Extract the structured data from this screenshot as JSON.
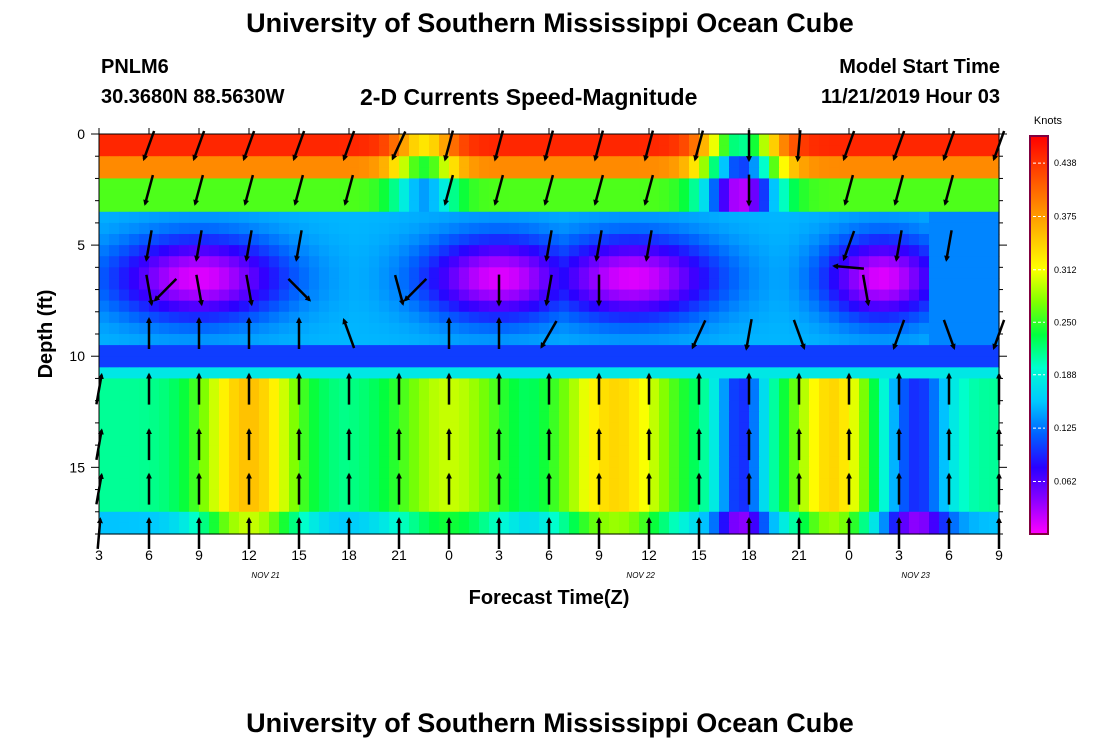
{
  "header": {
    "title": "University of Southern Mississippi Ocean Cube",
    "station_id": "PNLM6",
    "station_coords": "30.3680N 88.5630W",
    "chart_title": "2-D Currents Speed-Magnitude",
    "start_label": "Model Start Time",
    "start_value": "11/21/2019 Hour 03"
  },
  "footer": {
    "title": "University of Southern Mississippi Ocean Cube"
  },
  "colors": {
    "ramp": [
      "#ff00ff",
      "#8f00ff",
      "#2a00ff",
      "#0060ff",
      "#00c8ff",
      "#00ffd0",
      "#00ff40",
      "#80ff00",
      "#ffff00",
      "#ffc000",
      "#ff8000",
      "#ff4000",
      "#ff0000"
    ]
  },
  "chart_data": {
    "type": "heatmap",
    "title": "2-D Currents Speed-Magnitude",
    "xlabel": "Forecast Time(Z)",
    "ylabel": "Depth (ft)",
    "x_range_hours": [
      0,
      54
    ],
    "y_range_ft": [
      0,
      18
    ],
    "x_ticks": [
      {
        "h": 0,
        "label": "3"
      },
      {
        "h": 3,
        "label": "6"
      },
      {
        "h": 6,
        "label": "9"
      },
      {
        "h": 9,
        "label": "12"
      },
      {
        "h": 12,
        "label": "15"
      },
      {
        "h": 15,
        "label": "18"
      },
      {
        "h": 18,
        "label": "21"
      },
      {
        "h": 21,
        "label": "0"
      },
      {
        "h": 24,
        "label": "3"
      },
      {
        "h": 27,
        "label": "6"
      },
      {
        "h": 30,
        "label": "9"
      },
      {
        "h": 33,
        "label": "12"
      },
      {
        "h": 36,
        "label": "15"
      },
      {
        "h": 39,
        "label": "18"
      },
      {
        "h": 42,
        "label": "21"
      },
      {
        "h": 45,
        "label": "0"
      },
      {
        "h": 48,
        "label": "3"
      },
      {
        "h": 51,
        "label": "6"
      },
      {
        "h": 54,
        "label": "9"
      }
    ],
    "y_ticks": [
      {
        "v": 0,
        "label": "0"
      },
      {
        "v": 5,
        "label": "5"
      },
      {
        "v": 10,
        "label": "10"
      },
      {
        "v": 15,
        "label": "15"
      }
    ],
    "date_labels": [
      {
        "h": 10,
        "label": "NOV 21"
      },
      {
        "h": 32.5,
        "label": "NOV 22"
      },
      {
        "h": 49,
        "label": "NOV 23"
      }
    ],
    "colorbar": {
      "unit": "Knots",
      "min": 0,
      "max": 0.47,
      "ticks": [
        "0.438",
        "0.375",
        "0.312",
        "0.250",
        "0.188",
        "0.125",
        "0.062"
      ],
      "tick_values": [
        0.438,
        0.375,
        0.312,
        0.25,
        0.188,
        0.125,
        0.062
      ]
    },
    "vectors": [
      {
        "h": 3,
        "d": 0.5,
        "angle": 200
      },
      {
        "h": 6,
        "d": 0.5,
        "angle": 200
      },
      {
        "h": 9,
        "d": 0.5,
        "angle": 200
      },
      {
        "h": 12,
        "d": 0.5,
        "angle": 200
      },
      {
        "h": 15,
        "d": 0.5,
        "angle": 200
      },
      {
        "h": 18,
        "d": 0.5,
        "angle": 205
      },
      {
        "h": 21,
        "d": 0.5,
        "angle": 195
      },
      {
        "h": 24,
        "d": 0.5,
        "angle": 195
      },
      {
        "h": 27,
        "d": 0.5,
        "angle": 195
      },
      {
        "h": 30,
        "d": 0.5,
        "angle": 195
      },
      {
        "h": 33,
        "d": 0.5,
        "angle": 195
      },
      {
        "h": 36,
        "d": 0.5,
        "angle": 195
      },
      {
        "h": 39,
        "d": 0.5,
        "angle": 180
      },
      {
        "h": 42,
        "d": 0.5,
        "angle": 185
      },
      {
        "h": 45,
        "d": 0.5,
        "angle": 200
      },
      {
        "h": 48,
        "d": 0.5,
        "angle": 200
      },
      {
        "h": 51,
        "d": 0.5,
        "angle": 200
      },
      {
        "h": 54,
        "d": 0.5,
        "angle": 200
      },
      {
        "h": 3,
        "d": 2.5,
        "angle": 195
      },
      {
        "h": 6,
        "d": 2.5,
        "angle": 195
      },
      {
        "h": 9,
        "d": 2.5,
        "angle": 195
      },
      {
        "h": 12,
        "d": 2.5,
        "angle": 195
      },
      {
        "h": 15,
        "d": 2.5,
        "angle": 195
      },
      {
        "h": 21,
        "d": 2.5,
        "angle": 195
      },
      {
        "h": 24,
        "d": 2.5,
        "angle": 195
      },
      {
        "h": 27,
        "d": 2.5,
        "angle": 195
      },
      {
        "h": 30,
        "d": 2.5,
        "angle": 195
      },
      {
        "h": 33,
        "d": 2.5,
        "angle": 195
      },
      {
        "h": 39,
        "d": 2.5,
        "angle": 180
      },
      {
        "h": 45,
        "d": 2.5,
        "angle": 195
      },
      {
        "h": 48,
        "d": 2.5,
        "angle": 195
      },
      {
        "h": 51,
        "d": 2.5,
        "angle": 195
      },
      {
        "h": 3,
        "d": 5,
        "angle": 190
      },
      {
        "h": 6,
        "d": 5,
        "angle": 190
      },
      {
        "h": 9,
        "d": 5,
        "angle": 190
      },
      {
        "h": 12,
        "d": 5,
        "angle": 190
      },
      {
        "h": 27,
        "d": 5,
        "angle": 190
      },
      {
        "h": 30,
        "d": 5,
        "angle": 190
      },
      {
        "h": 33,
        "d": 5,
        "angle": 190
      },
      {
        "h": 45,
        "d": 5,
        "angle": 200
      },
      {
        "h": 48,
        "d": 5,
        "angle": 190
      },
      {
        "h": 51,
        "d": 5,
        "angle": 190
      },
      {
        "h": 3,
        "d": 7,
        "angle": 170
      },
      {
        "h": 4,
        "d": 7,
        "angle": 225
      },
      {
        "h": 6,
        "d": 7,
        "angle": 170
      },
      {
        "h": 9,
        "d": 7,
        "angle": 170
      },
      {
        "h": 12,
        "d": 7,
        "angle": 135
      },
      {
        "h": 18,
        "d": 7,
        "angle": 165
      },
      {
        "h": 19,
        "d": 7,
        "angle": 225
      },
      {
        "h": 24,
        "d": 7,
        "angle": 180
      },
      {
        "h": 27,
        "d": 7,
        "angle": 190
      },
      {
        "h": 30,
        "d": 7,
        "angle": 180
      },
      {
        "h": 45,
        "d": 6,
        "angle": 275
      },
      {
        "h": 46,
        "d": 7,
        "angle": 170
      },
      {
        "h": 3,
        "d": 9,
        "angle": 0
      },
      {
        "h": 6,
        "d": 9,
        "angle": 0
      },
      {
        "h": 9,
        "d": 9,
        "angle": 0
      },
      {
        "h": 12,
        "d": 9,
        "angle": 0
      },
      {
        "h": 15,
        "d": 9,
        "angle": 340
      },
      {
        "h": 21,
        "d": 9,
        "angle": 0
      },
      {
        "h": 24,
        "d": 9,
        "angle": 0
      },
      {
        "h": 27,
        "d": 9,
        "angle": 210
      },
      {
        "h": 36,
        "d": 9,
        "angle": 205
      },
      {
        "h": 39,
        "d": 9,
        "angle": 190
      },
      {
        "h": 42,
        "d": 9,
        "angle": 160
      },
      {
        "h": 48,
        "d": 9,
        "angle": 200
      },
      {
        "h": 51,
        "d": 9,
        "angle": 160
      },
      {
        "h": 54,
        "d": 9,
        "angle": 200
      },
      {
        "h": 0,
        "d": 11.5,
        "angle": 10
      },
      {
        "h": 3,
        "d": 11.5,
        "angle": 0
      },
      {
        "h": 6,
        "d": 11.5,
        "angle": 0
      },
      {
        "h": 9,
        "d": 11.5,
        "angle": 0
      },
      {
        "h": 12,
        "d": 11.5,
        "angle": 0
      },
      {
        "h": 15,
        "d": 11.5,
        "angle": 0
      },
      {
        "h": 18,
        "d": 11.5,
        "angle": 0
      },
      {
        "h": 21,
        "d": 11.5,
        "angle": 0
      },
      {
        "h": 24,
        "d": 11.5,
        "angle": 0
      },
      {
        "h": 27,
        "d": 11.5,
        "angle": 0
      },
      {
        "h": 30,
        "d": 11.5,
        "angle": 0
      },
      {
        "h": 33,
        "d": 11.5,
        "angle": 0
      },
      {
        "h": 36,
        "d": 11.5,
        "angle": 0
      },
      {
        "h": 39,
        "d": 11.5,
        "angle": 0
      },
      {
        "h": 42,
        "d": 11.5,
        "angle": 0
      },
      {
        "h": 45,
        "d": 11.5,
        "angle": 0
      },
      {
        "h": 48,
        "d": 11.5,
        "angle": 0
      },
      {
        "h": 51,
        "d": 11.5,
        "angle": 0
      },
      {
        "h": 54,
        "d": 11.5,
        "angle": 0
      },
      {
        "h": 0,
        "d": 14,
        "angle": 10
      },
      {
        "h": 3,
        "d": 14,
        "angle": 0
      },
      {
        "h": 6,
        "d": 14,
        "angle": 0
      },
      {
        "h": 9,
        "d": 14,
        "angle": 0
      },
      {
        "h": 12,
        "d": 14,
        "angle": 0
      },
      {
        "h": 15,
        "d": 14,
        "angle": 0
      },
      {
        "h": 18,
        "d": 14,
        "angle": 0
      },
      {
        "h": 21,
        "d": 14,
        "angle": 0
      },
      {
        "h": 24,
        "d": 14,
        "angle": 0
      },
      {
        "h": 27,
        "d": 14,
        "angle": 0
      },
      {
        "h": 30,
        "d": 14,
        "angle": 0
      },
      {
        "h": 33,
        "d": 14,
        "angle": 0
      },
      {
        "h": 36,
        "d": 14,
        "angle": 0
      },
      {
        "h": 39,
        "d": 14,
        "angle": 0
      },
      {
        "h": 42,
        "d": 14,
        "angle": 0
      },
      {
        "h": 45,
        "d": 14,
        "angle": 0
      },
      {
        "h": 48,
        "d": 14,
        "angle": 0
      },
      {
        "h": 51,
        "d": 14,
        "angle": 0
      },
      {
        "h": 54,
        "d": 14,
        "angle": 0
      },
      {
        "h": 0,
        "d": 16,
        "angle": 10
      },
      {
        "h": 3,
        "d": 16,
        "angle": 0
      },
      {
        "h": 6,
        "d": 16,
        "angle": 0
      },
      {
        "h": 9,
        "d": 16,
        "angle": 0
      },
      {
        "h": 12,
        "d": 16,
        "angle": 0
      },
      {
        "h": 15,
        "d": 16,
        "angle": 0
      },
      {
        "h": 18,
        "d": 16,
        "angle": 0
      },
      {
        "h": 21,
        "d": 16,
        "angle": 0
      },
      {
        "h": 24,
        "d": 16,
        "angle": 0
      },
      {
        "h": 27,
        "d": 16,
        "angle": 0
      },
      {
        "h": 30,
        "d": 16,
        "angle": 0
      },
      {
        "h": 33,
        "d": 16,
        "angle": 0
      },
      {
        "h": 36,
        "d": 16,
        "angle": 0
      },
      {
        "h": 39,
        "d": 16,
        "angle": 0
      },
      {
        "h": 42,
        "d": 16,
        "angle": 0
      },
      {
        "h": 45,
        "d": 16,
        "angle": 0
      },
      {
        "h": 48,
        "d": 16,
        "angle": 0
      },
      {
        "h": 51,
        "d": 16,
        "angle": 0
      },
      {
        "h": 54,
        "d": 16,
        "angle": 0
      },
      {
        "h": 0,
        "d": 18,
        "angle": 5
      },
      {
        "h": 3,
        "d": 18,
        "angle": 0
      },
      {
        "h": 6,
        "d": 18,
        "angle": 0
      },
      {
        "h": 9,
        "d": 18,
        "angle": 0
      },
      {
        "h": 12,
        "d": 18,
        "angle": 0
      },
      {
        "h": 15,
        "d": 18,
        "angle": 0
      },
      {
        "h": 18,
        "d": 18,
        "angle": 0
      },
      {
        "h": 21,
        "d": 18,
        "angle": 0
      },
      {
        "h": 24,
        "d": 18,
        "angle": 0
      },
      {
        "h": 27,
        "d": 18,
        "angle": 0
      },
      {
        "h": 30,
        "d": 18,
        "angle": 0
      },
      {
        "h": 33,
        "d": 18,
        "angle": 0
      },
      {
        "h": 36,
        "d": 18,
        "angle": 0
      },
      {
        "h": 39,
        "d": 18,
        "angle": 0
      },
      {
        "h": 42,
        "d": 18,
        "angle": 0
      },
      {
        "h": 45,
        "d": 18,
        "angle": 0
      },
      {
        "h": 48,
        "d": 18,
        "angle": 0
      },
      {
        "h": 51,
        "d": 18,
        "angle": 0
      },
      {
        "h": 54,
        "d": 18,
        "angle": 0
      }
    ]
  }
}
